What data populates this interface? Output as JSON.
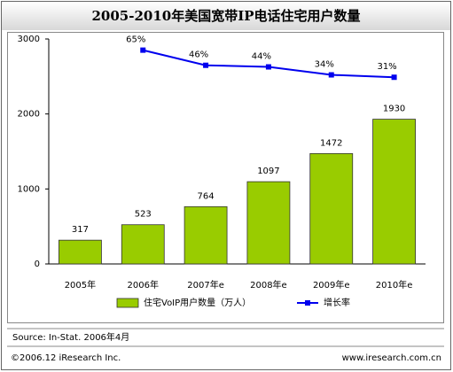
{
  "chart_data": {
    "type": "bar",
    "title": "2005-2010年美国宽带IP电话住宅用户数量",
    "categories": [
      "2005年",
      "2006年",
      "2007年e",
      "2008年e",
      "2009年e",
      "2010年e"
    ],
    "series": [
      {
        "name": "住宅VoIP用户数量（万人）",
        "color": "#99cc00",
        "values": [
          317,
          523,
          764,
          1097,
          1472,
          1930
        ]
      },
      {
        "name": "增长率",
        "type": "line",
        "axis": "y2",
        "color": "#0000ee",
        "values": [
          null,
          65,
          46,
          44,
          34,
          31
        ],
        "value_labels": [
          null,
          "65%",
          "46%",
          "44%",
          "34%",
          "31%"
        ]
      }
    ],
    "ylim": [
      0,
      3000
    ],
    "yticks": [
      0,
      1000,
      2000,
      3000
    ],
    "y2lim": [
      -203,
      79
    ]
  },
  "source": "Source: In-Stat. 2006年4月",
  "copyright": "©2006.12 iResearch Inc.",
  "website": "www.iresearch.com.cn"
}
